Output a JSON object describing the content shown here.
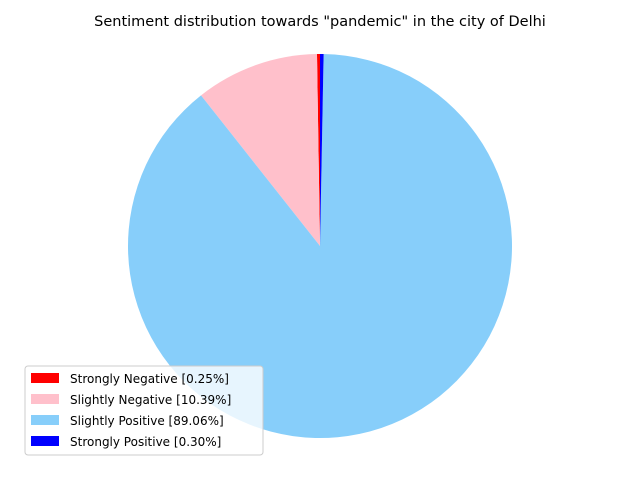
{
  "chart_data": {
    "type": "pie",
    "title": "Sentiment distribution towards \"pandemic\" in the city of Delhi",
    "slices": [
      {
        "label": "Strongly Negative",
        "value": 0.25,
        "color": "#ff0000",
        "legend": "Strongly Negative [0.25%]"
      },
      {
        "label": "Slightly Negative",
        "value": 10.39,
        "color": "#ffc0cb",
        "legend": "Slightly Negative [10.39%]"
      },
      {
        "label": "Slightly Positive",
        "value": 89.06,
        "color": "#87cefa",
        "legend": "Slightly Positive [89.06%]"
      },
      {
        "label": "Strongly Positive",
        "value": 0.3,
        "color": "#0000ff",
        "legend": "Strongly Positive [0.30%]"
      }
    ],
    "start_angle_deg": 90,
    "direction": "counterclockwise",
    "legend_position": "lower-left"
  }
}
